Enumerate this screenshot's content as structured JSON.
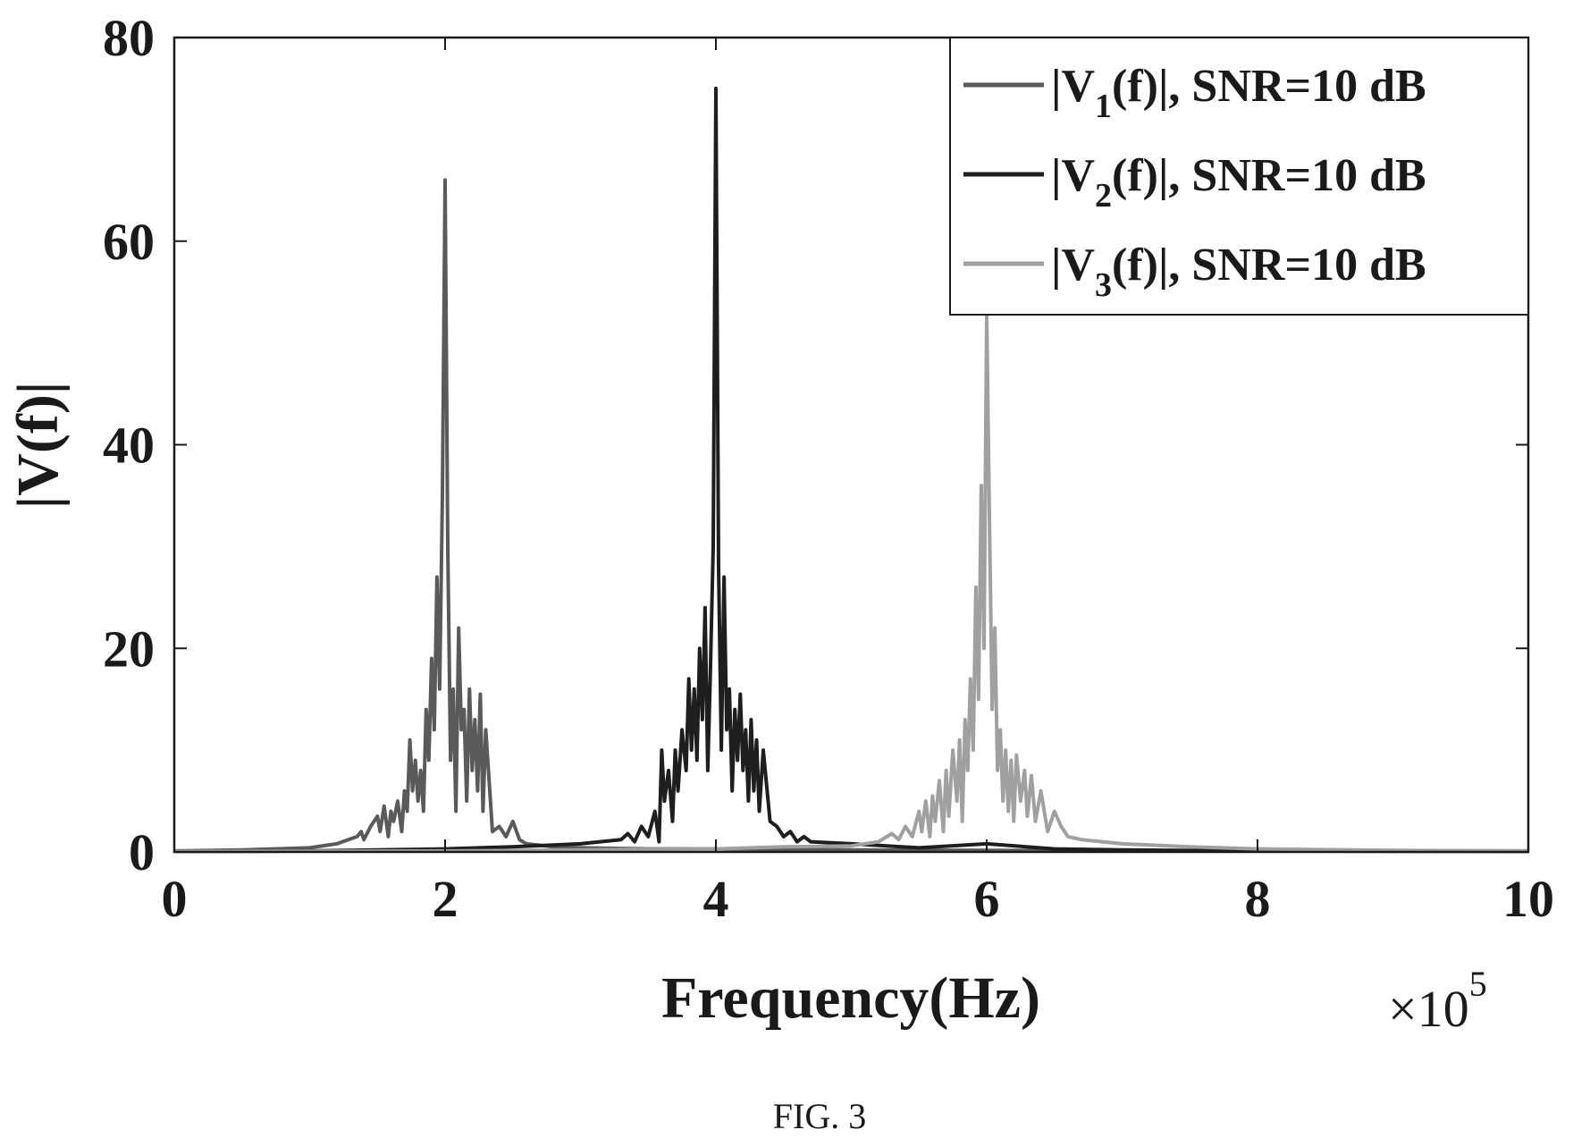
{
  "chart_data": {
    "type": "line",
    "xlabel": "Frequency(Hz)",
    "ylabel": "|V(f)|",
    "x_multiplier": {
      "base": "×10",
      "exponent": "5"
    },
    "xlim": [
      0,
      10
    ],
    "ylim": [
      0,
      80
    ],
    "x_ticks": [
      "0",
      "2",
      "4",
      "6",
      "8",
      "10"
    ],
    "y_ticks": [
      "0",
      "20",
      "40",
      "60",
      "80"
    ],
    "grid": false,
    "legend_position": "top-right",
    "series": [
      {
        "name": "|V1(f)|, SNR=10 dB",
        "legend": {
          "pre": "|V",
          "sub": "1",
          "post": "(f)|, SNR=10 dB"
        },
        "color": "#5a5a5a",
        "x": [
          0,
          0.5,
          1.0,
          1.2,
          1.35,
          1.38,
          1.4,
          1.45,
          1.5,
          1.52,
          1.55,
          1.58,
          1.6,
          1.62,
          1.65,
          1.68,
          1.7,
          1.72,
          1.74,
          1.76,
          1.78,
          1.8,
          1.82,
          1.84,
          1.86,
          1.88,
          1.9,
          1.92,
          1.94,
          1.96,
          1.98,
          2.0,
          2.02,
          2.04,
          2.06,
          2.08,
          2.1,
          2.12,
          2.14,
          2.16,
          2.18,
          2.2,
          2.22,
          2.24,
          2.26,
          2.28,
          2.3,
          2.35,
          2.4,
          2.45,
          2.5,
          2.55,
          2.6,
          2.8,
          3.0,
          3.5,
          4.0,
          5.0,
          6.0,
          8.0,
          10.0
        ],
        "y": [
          0.1,
          0.2,
          0.4,
          0.8,
          1.5,
          2.0,
          1.2,
          2.5,
          3.5,
          2.0,
          4.5,
          1.5,
          4.0,
          3.0,
          5.0,
          2.0,
          6.0,
          4.0,
          11.0,
          6.0,
          9.0,
          5.0,
          8.0,
          4.0,
          14.0,
          9.0,
          19.0,
          12.0,
          27.0,
          16.0,
          35.0,
          66.0,
          30.0,
          9.0,
          16.0,
          4.0,
          22.0,
          12.0,
          14.0,
          5.0,
          16.0,
          8.0,
          13.0,
          6.0,
          15.5,
          4.0,
          12.0,
          2.0,
          2.5,
          1.5,
          3.0,
          1.2,
          0.8,
          0.5,
          0.4,
          0.3,
          0.3,
          0.2,
          0.15,
          0.1,
          0.1
        ]
      },
      {
        "name": "|V2(f)|, SNR=10 dB",
        "legend": {
          "pre": "|V",
          "sub": "2",
          "post": "(f)|, SNR=10 dB"
        },
        "color": "#1e1e1e",
        "x": [
          0,
          1.0,
          2.0,
          2.5,
          3.0,
          3.3,
          3.35,
          3.4,
          3.45,
          3.5,
          3.55,
          3.58,
          3.6,
          3.62,
          3.65,
          3.68,
          3.7,
          3.72,
          3.75,
          3.78,
          3.8,
          3.82,
          3.84,
          3.86,
          3.88,
          3.9,
          3.92,
          3.94,
          3.96,
          3.98,
          4.0,
          4.02,
          4.04,
          4.06,
          4.08,
          4.1,
          4.12,
          4.14,
          4.16,
          4.18,
          4.2,
          4.22,
          4.24,
          4.26,
          4.28,
          4.3,
          4.32,
          4.35,
          4.4,
          4.45,
          4.5,
          4.55,
          4.6,
          4.65,
          4.7,
          5.0,
          5.5,
          6.0,
          6.5,
          7.0,
          8.0,
          10.0
        ],
        "y": [
          0.05,
          0.1,
          0.3,
          0.5,
          0.8,
          1.2,
          1.8,
          1.0,
          2.5,
          1.5,
          4.0,
          1.0,
          10.0,
          5.0,
          8.0,
          3.0,
          10.0,
          6.0,
          12.0,
          8.0,
          17.0,
          10.0,
          16.0,
          9.0,
          20.0,
          13.0,
          24.0,
          8.0,
          18.0,
          30.0,
          75.0,
          28.0,
          10.0,
          27.0,
          12.0,
          16.0,
          6.0,
          14.0,
          9.0,
          15.5,
          8.0,
          12.0,
          5.0,
          13.0,
          6.0,
          11.0,
          4.0,
          10.0,
          3.0,
          2.5,
          1.5,
          2.0,
          1.0,
          1.5,
          1.0,
          0.8,
          0.4,
          0.8,
          0.3,
          0.2,
          0.1,
          0.05
        ]
      },
      {
        "name": "|V3(f)|, SNR=10 dB",
        "legend": {
          "pre": "|V",
          "sub": "3",
          "post": "(f)|, SNR=10 dB"
        },
        "color": "#a0a0a0",
        "x": [
          0,
          2.0,
          4.0,
          4.5,
          5.0,
          5.2,
          5.3,
          5.35,
          5.4,
          5.45,
          5.5,
          5.52,
          5.55,
          5.58,
          5.6,
          5.62,
          5.65,
          5.68,
          5.7,
          5.72,
          5.75,
          5.78,
          5.8,
          5.82,
          5.84,
          5.86,
          5.88,
          5.9,
          5.92,
          5.94,
          5.96,
          5.98,
          6.0,
          6.02,
          6.04,
          6.06,
          6.08,
          6.1,
          6.12,
          6.14,
          6.16,
          6.18,
          6.2,
          6.22,
          6.25,
          6.28,
          6.3,
          6.33,
          6.36,
          6.4,
          6.45,
          6.5,
          6.55,
          6.6,
          6.7,
          7.0,
          7.5,
          8.0,
          9.0,
          10.0
        ],
        "y": [
          0.05,
          0.1,
          0.3,
          0.5,
          0.6,
          1.0,
          1.8,
          1.2,
          2.5,
          1.5,
          4.0,
          2.0,
          5.0,
          1.5,
          5.5,
          3.0,
          7.0,
          2.0,
          8.0,
          3.5,
          10.0,
          5.0,
          11.0,
          3.0,
          13.0,
          8.0,
          17.0,
          10.0,
          26.0,
          15.0,
          36.0,
          20.0,
          53.0,
          33.0,
          14.0,
          22.0,
          8.0,
          12.0,
          5.0,
          10.0,
          4.0,
          9.0,
          3.0,
          9.5,
          5.0,
          8.0,
          3.5,
          7.5,
          3.0,
          6.0,
          2.0,
          4.0,
          2.5,
          1.5,
          1.2,
          0.8,
          0.5,
          0.3,
          0.15,
          0.1
        ]
      }
    ]
  },
  "caption": "FIG. 3"
}
